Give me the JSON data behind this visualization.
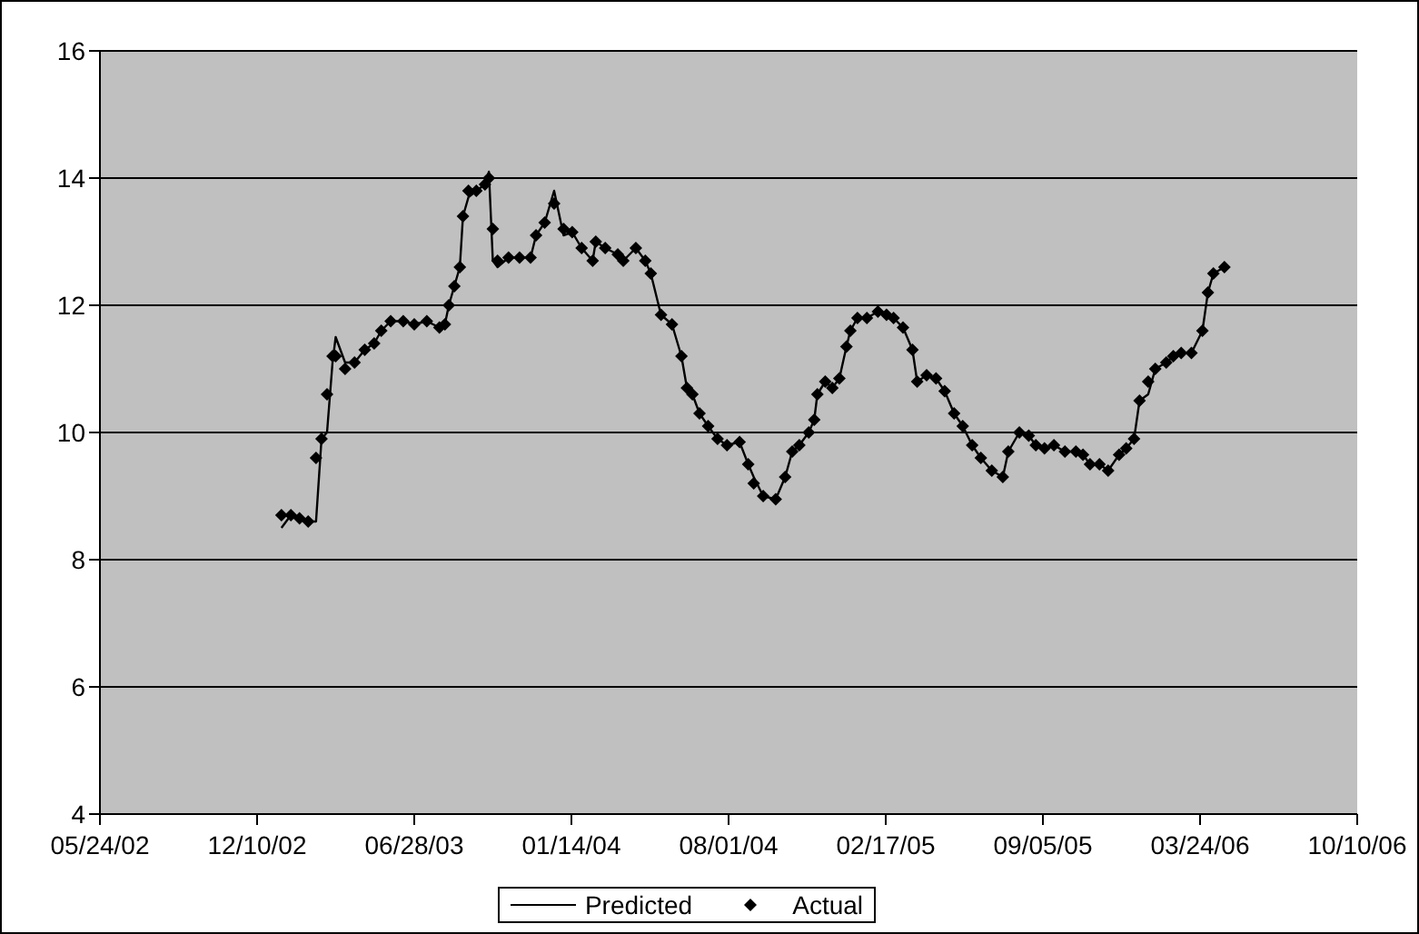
{
  "chart_data": {
    "type": "line",
    "x": [
      "2003-01-10",
      "2003-01-22",
      "2003-02-02",
      "2003-02-13",
      "2003-02-23",
      "2003-03-02",
      "2003-03-09",
      "2003-03-16",
      "2003-03-20",
      "2003-04-01",
      "2003-04-13",
      "2003-04-26",
      "2003-05-08",
      "2003-05-17",
      "2003-05-29",
      "2003-06-14",
      "2003-06-28",
      "2003-07-14",
      "2003-07-30",
      "2003-08-06",
      "2003-08-11",
      "2003-08-18",
      "2003-08-25",
      "2003-08-29",
      "2003-09-05",
      "2003-09-15",
      "2003-09-26",
      "2003-10-01",
      "2003-10-06",
      "2003-10-12",
      "2003-10-26",
      "2003-11-09",
      "2003-11-23",
      "2003-11-30",
      "2003-12-11",
      "2003-12-23",
      "2004-01-04",
      "2004-01-15",
      "2004-01-27",
      "2004-02-10",
      "2004-02-14",
      "2004-02-26",
      "2004-03-13",
      "2004-03-20",
      "2004-04-05",
      "2004-04-17",
      "2004-04-24",
      "2004-05-07",
      "2004-05-21",
      "2004-06-02",
      "2004-06-09",
      "2004-06-16",
      "2004-06-25",
      "2004-07-06",
      "2004-07-18",
      "2004-07-30",
      "2004-08-15",
      "2004-08-26",
      "2004-09-02",
      "2004-09-14",
      "2004-09-30",
      "2004-10-12",
      "2004-10-21",
      "2004-10-30",
      "2004-11-11",
      "2004-11-18",
      "2004-11-22",
      "2004-12-02",
      "2004-12-11",
      "2004-12-20",
      "2004-12-29",
      "2005-01-03",
      "2005-01-12",
      "2005-01-24",
      "2005-02-07",
      "2005-02-18",
      "2005-02-27",
      "2005-03-11",
      "2005-03-23",
      "2005-03-29",
      "2005-04-10",
      "2005-04-22",
      "2005-05-03",
      "2005-05-15",
      "2005-05-26",
      "2005-06-07",
      "2005-06-18",
      "2005-07-02",
      "2005-07-16",
      "2005-07-23",
      "2005-08-06",
      "2005-08-18",
      "2005-08-27",
      "2005-09-07",
      "2005-09-19",
      "2005-10-03",
      "2005-10-17",
      "2005-10-26",
      "2005-11-04",
      "2005-11-16",
      "2005-11-27",
      "2005-12-11",
      "2005-12-20",
      "2005-12-30",
      "2006-01-06",
      "2006-01-17",
      "2006-01-26",
      "2006-02-09",
      "2006-02-18",
      "2006-02-28",
      "2006-03-13",
      "2006-03-27",
      "2006-04-03",
      "2006-04-10",
      "2006-04-24"
    ],
    "series": [
      {
        "name": "Predicted",
        "marker": "none",
        "line_style": "solid",
        "color": "#000000",
        "values": [
          8.5,
          8.7,
          8.65,
          8.6,
          8.6,
          9.9,
          10.0,
          11.1,
          11.5,
          11.1,
          11.1,
          11.3,
          11.4,
          11.6,
          11.75,
          11.75,
          11.7,
          11.75,
          11.65,
          11.7,
          12.0,
          12.3,
          12.6,
          13.4,
          13.7,
          13.8,
          13.9,
          14.1,
          12.7,
          12.6,
          12.75,
          12.75,
          12.75,
          13.1,
          13.3,
          13.8,
          13.1,
          13.15,
          12.9,
          12.7,
          13.0,
          12.9,
          12.8,
          12.7,
          12.9,
          12.7,
          12.5,
          11.85,
          11.7,
          11.2,
          10.7,
          10.6,
          10.3,
          10.1,
          9.9,
          9.8,
          9.85,
          9.5,
          9.3,
          9.0,
          8.95,
          9.3,
          9.7,
          9.8,
          10.0,
          10.2,
          10.6,
          10.8,
          10.7,
          10.85,
          11.35,
          11.6,
          11.8,
          11.8,
          11.9,
          11.85,
          11.8,
          11.65,
          11.3,
          10.8,
          10.9,
          10.85,
          10.65,
          10.3,
          10.1,
          9.8,
          9.6,
          9.4,
          9.3,
          9.7,
          10.0,
          9.95,
          9.8,
          9.75,
          9.8,
          9.7,
          9.7,
          9.65,
          9.5,
          9.5,
          9.4,
          9.65,
          9.75,
          9.9,
          10.5,
          10.6,
          11.0,
          11.1,
          11.2,
          11.25,
          11.25,
          11.6,
          12.2,
          12.5,
          12.6
        ]
      },
      {
        "name": "Actual",
        "type": "scatter",
        "marker": "diamond",
        "color": "#000000",
        "values": [
          8.7,
          8.7,
          8.65,
          8.6,
          9.6,
          9.9,
          10.6,
          11.2,
          11.2,
          11.0,
          11.1,
          11.3,
          11.4,
          11.6,
          11.75,
          11.75,
          11.7,
          11.75,
          11.65,
          11.7,
          12.0,
          12.3,
          12.6,
          13.4,
          13.8,
          13.8,
          13.9,
          14.0,
          13.2,
          12.7,
          12.75,
          12.75,
          12.75,
          13.1,
          13.3,
          13.6,
          13.2,
          13.15,
          12.9,
          12.7,
          13.0,
          12.9,
          12.8,
          12.7,
          12.9,
          12.7,
          12.5,
          11.85,
          11.7,
          11.2,
          10.7,
          10.6,
          10.3,
          10.1,
          9.9,
          9.8,
          9.85,
          9.5,
          9.2,
          9.0,
          8.95,
          9.3,
          9.7,
          9.8,
          10.0,
          10.2,
          10.6,
          10.8,
          10.7,
          10.85,
          11.35,
          11.6,
          11.8,
          11.8,
          11.9,
          11.85,
          11.8,
          11.65,
          11.3,
          10.8,
          10.9,
          10.85,
          10.65,
          10.3,
          10.1,
          9.8,
          9.6,
          9.4,
          9.3,
          9.7,
          10.0,
          9.95,
          9.8,
          9.75,
          9.8,
          9.7,
          9.7,
          9.65,
          9.5,
          9.5,
          9.4,
          9.65,
          9.75,
          9.9,
          10.5,
          10.8,
          11.0,
          11.1,
          11.2,
          11.25,
          11.25,
          11.6,
          12.2,
          12.5,
          12.6
        ]
      }
    ],
    "xlim": [
      "2002-05-24",
      "2006-10-10"
    ],
    "xticks": [
      {
        "value": "2002-05-24",
        "label": "05/24/02"
      },
      {
        "value": "2002-12-10",
        "label": "12/10/02"
      },
      {
        "value": "2003-06-28",
        "label": "06/28/03"
      },
      {
        "value": "2004-01-14",
        "label": "01/14/04"
      },
      {
        "value": "2004-08-01",
        "label": "08/01/04"
      },
      {
        "value": "2005-02-17",
        "label": "02/17/05"
      },
      {
        "value": "2005-09-05",
        "label": "09/05/05"
      },
      {
        "value": "2006-03-24",
        "label": "03/24/06"
      },
      {
        "value": "2006-10-10",
        "label": "10/10/06"
      }
    ],
    "ylim": [
      4,
      16
    ],
    "yticks": [
      4,
      6,
      8,
      10,
      12,
      14,
      16
    ],
    "grid": "y",
    "legend": "bottom"
  }
}
